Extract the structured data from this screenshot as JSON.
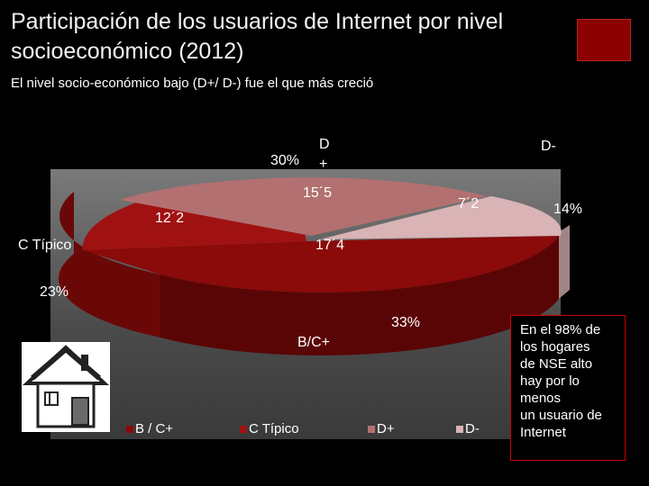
{
  "title": "Participación de los usuarios de Internet por nivel socioeconómico (2012)",
  "subtitle": "El nivel socio-económico  bajo  (D+/ D-) fue el que más creció",
  "callout": {
    "lines": [
      "En el 98% de",
      "los hogares",
      "de NSE alto",
      "hay por lo",
      "menos",
      "un usuario de",
      "Internet"
    ]
  },
  "chart_data": {
    "type": "pie",
    "style": "3d-exploded",
    "slices": [
      {
        "category": "B / C+",
        "label": "B/C+",
        "share_pct": "33%",
        "growth": "17´4",
        "color": "#8b0a0a"
      },
      {
        "category": "C Típico",
        "label": "C  Típico",
        "share_pct": "23%",
        "growth": "12´2",
        "color": "#a01212"
      },
      {
        "category": "D+",
        "label": "D\n+",
        "share_pct": "30%",
        "growth": "15´5",
        "color": "#b37070"
      },
      {
        "category": "D-",
        "label": "D-",
        "share_pct": "14%",
        "growth": "7´2",
        "color": "#d9b3b5"
      }
    ],
    "legend": {
      "items": [
        "B / C+",
        "C Típico",
        "D+",
        "D-"
      ],
      "position": "bottom"
    }
  },
  "colors": {
    "accent_square": "#8b0000",
    "background": "#000000"
  }
}
